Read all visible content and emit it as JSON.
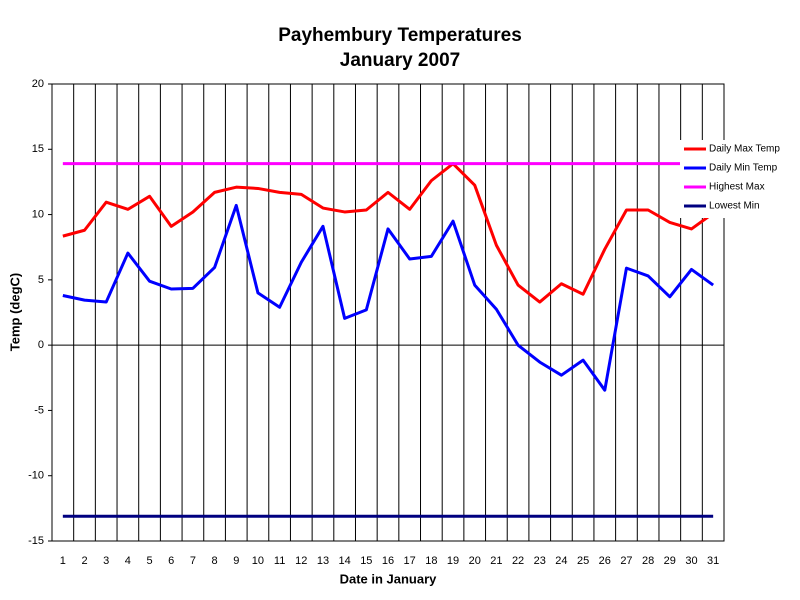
{
  "chart_data": {
    "type": "line",
    "title": [
      "Payhembury Temperatures",
      "January 2007"
    ],
    "x_label": "Date in January",
    "y_label": "Temp (degC)",
    "categories": [
      "1",
      "2",
      "3",
      "4",
      "5",
      "6",
      "7",
      "8",
      "9",
      "10",
      "11",
      "12",
      "13",
      "14",
      "15",
      "16",
      "17",
      "18",
      "19",
      "20",
      "21",
      "22",
      "23",
      "24",
      "25",
      "26",
      "27",
      "28",
      "29",
      "30",
      "31"
    ],
    "series": [
      {
        "name": "Daily Max Temp",
        "color": "#ff0000",
        "values": [
          8.35,
          8.8,
          10.95,
          10.4,
          11.4,
          9.1,
          10.2,
          11.7,
          12.1,
          12.0,
          11.7,
          11.55,
          10.5,
          10.2,
          10.35,
          11.7,
          10.4,
          12.6,
          13.9,
          12.25,
          7.65,
          4.6,
          3.3,
          4.7,
          3.9,
          7.35,
          10.35,
          10.35,
          9.4,
          8.9,
          10.1
        ]
      },
      {
        "name": "Daily Min Temp",
        "color": "#0000ff",
        "values": [
          3.8,
          3.45,
          3.3,
          7.05,
          4.9,
          4.3,
          4.35,
          5.95,
          10.7,
          4.0,
          2.9,
          6.35,
          9.1,
          2.05,
          2.7,
          8.9,
          6.6,
          6.8,
          9.5,
          4.6,
          2.75,
          0,
          -1.3,
          -2.3,
          -1.15,
          -3.45,
          5.9,
          5.3,
          3.7,
          5.8,
          4.6
        ]
      },
      {
        "name": "Highest Max",
        "color": "#ff00ff",
        "values": [
          13.9,
          13.9,
          13.9,
          13.9,
          13.9,
          13.9,
          13.9,
          13.9,
          13.9,
          13.9,
          13.9,
          13.9,
          13.9,
          13.9,
          13.9,
          13.9,
          13.9,
          13.9,
          13.9,
          13.9,
          13.9,
          13.9,
          13.9,
          13.9,
          13.9,
          13.9,
          13.9,
          13.9,
          13.9,
          13.9,
          13.9
        ]
      },
      {
        "name": "Lowest Min",
        "color": "#000080",
        "values": [
          -13.1,
          -13.1,
          -13.1,
          -13.1,
          -13.1,
          -13.1,
          -13.1,
          -13.1,
          -13.1,
          -13.1,
          -13.1,
          -13.1,
          -13.1,
          -13.1,
          -13.1,
          -13.1,
          -13.1,
          -13.1,
          -13.1,
          -13.1,
          -13.1,
          -13.1,
          -13.1,
          -13.1,
          -13.1,
          -13.1,
          -13.1,
          -13.1,
          -13.1,
          -13.1,
          -13.1
        ]
      }
    ],
    "ylim": [
      -15,
      20
    ],
    "yticks": [
      -15,
      -10,
      -5,
      0,
      5,
      10,
      15,
      20
    ],
    "legend": "right"
  }
}
